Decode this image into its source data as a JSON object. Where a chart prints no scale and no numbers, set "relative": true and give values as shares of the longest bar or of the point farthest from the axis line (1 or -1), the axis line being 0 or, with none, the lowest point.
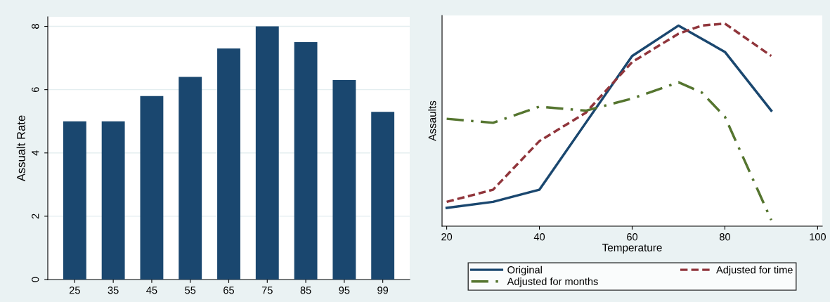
{
  "chart_data": [
    {
      "type": "bar",
      "ylabel": "Assualt Rate",
      "categories": [
        "25",
        "35",
        "45",
        "55",
        "65",
        "75",
        "85",
        "95",
        "99"
      ],
      "values": [
        5,
        5,
        5.8,
        6.4,
        7.3,
        8,
        7.5,
        6.3,
        5.3
      ],
      "color": "#1a476f",
      "ylim": [
        0,
        8.3
      ],
      "yticks": [
        0,
        2,
        4,
        6,
        8
      ],
      "grid": "y",
      "legend": false
    },
    {
      "type": "line",
      "relative": true,
      "xlabel": "Temperature",
      "ylabel": "Assaults",
      "xlim": [
        19,
        101
      ],
      "xticks": [
        20,
        40,
        60,
        80,
        100
      ],
      "tick_labels": "x",
      "legend": "bottom",
      "grid": false,
      "series": [
        {
          "name": "Original",
          "color": "#1a476f",
          "line_style": "solid",
          "x": [
            20,
            30,
            40,
            50,
            60,
            70,
            80,
            90
          ],
          "values": [
            0.09,
            0.12,
            0.18,
            0.51,
            0.84,
            0.99,
            0.86,
            0.57
          ]
        },
        {
          "name": "Adjusted for time",
          "color": "#90353b",
          "line_style": "dashed",
          "x": [
            20,
            30,
            40,
            50,
            60,
            70,
            75,
            80,
            90
          ],
          "values": [
            0.12,
            0.18,
            0.42,
            0.56,
            0.81,
            0.95,
            0.99,
            1.0,
            0.84
          ]
        },
        {
          "name": "Adjusted for months",
          "color": "#55752f",
          "line_style": "dashdot",
          "x": [
            20,
            30,
            40,
            45,
            50,
            60,
            70,
            75,
            80,
            90
          ],
          "values": [
            0.53,
            0.51,
            0.59,
            0.58,
            0.57,
            0.63,
            0.71,
            0.66,
            0.54,
            0.03
          ]
        }
      ]
    }
  ]
}
